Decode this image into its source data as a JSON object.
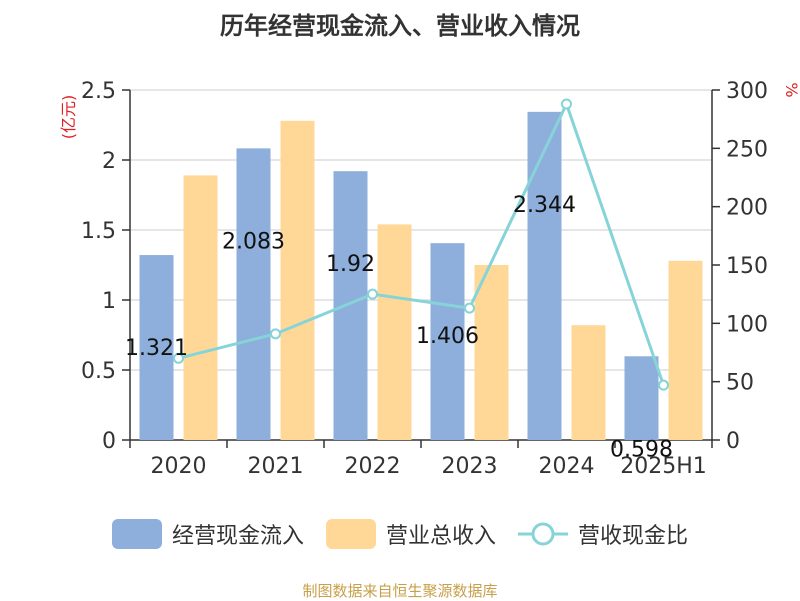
{
  "chart_data": {
    "type": "bar",
    "title": "历年经营现金流入、营业收入情况",
    "categories": [
      "2020",
      "2021",
      "2022",
      "2023",
      "2024",
      "2025H1"
    ],
    "ylabel_left": "(亿元)",
    "ylabel_right": "%",
    "ylim_left": [
      0,
      2.5
    ],
    "ylim_right": [
      0,
      300
    ],
    "yticks_left": [
      "0",
      "0.5",
      "1",
      "1.5",
      "2",
      "2.5"
    ],
    "yticks_right": [
      "0",
      "50",
      "100",
      "150",
      "200",
      "250",
      "300"
    ],
    "grid": true,
    "legend_position": "bottom",
    "series": [
      {
        "name": "经营现金流入",
        "kind": "bar",
        "color": "#8eaedb",
        "values": [
          1.321,
          2.083,
          1.92,
          1.406,
          2.344,
          0.598
        ],
        "labels": [
          "1.321",
          "2.083",
          "1.92",
          "1.406",
          "2.344",
          "0.598"
        ]
      },
      {
        "name": "营业总收入",
        "kind": "bar",
        "color": "#ffd898",
        "values": [
          1.89,
          2.28,
          1.54,
          1.25,
          0.82,
          1.28
        ]
      },
      {
        "name": "营收现金比",
        "kind": "line",
        "axis": "right",
        "color": "#86d4d8",
        "values": [
          70,
          91,
          125,
          113,
          288,
          47
        ]
      }
    ]
  },
  "source": "制图数据来自恒生聚源数据库"
}
